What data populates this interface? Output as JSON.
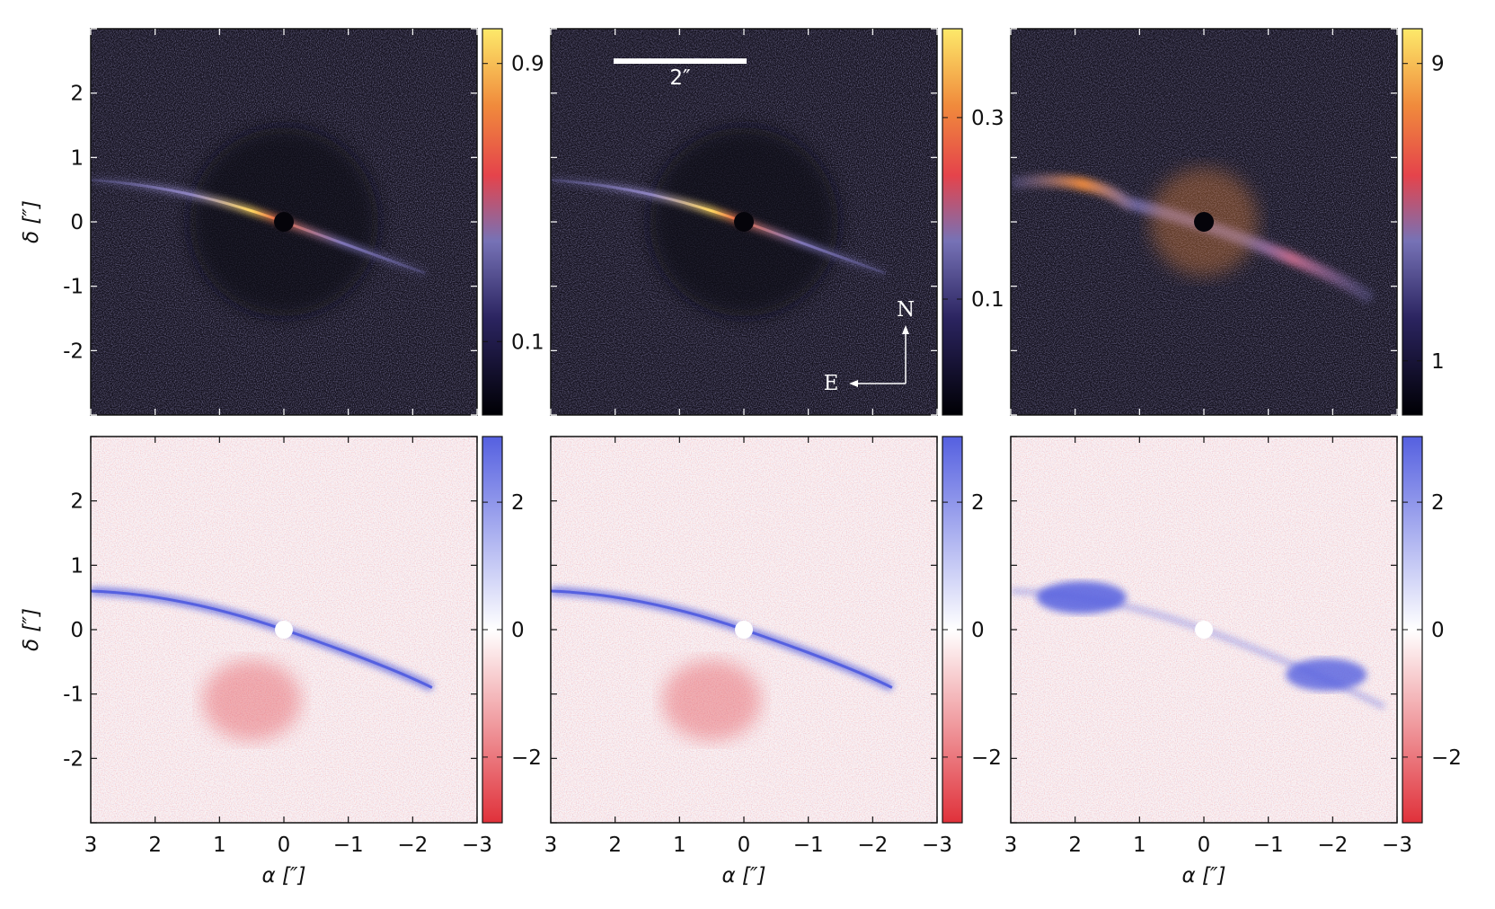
{
  "figure": {
    "x_axis_label": "α [″]",
    "y_axis_label": "δ [″]",
    "x_ticks": [
      "3",
      "2",
      "1",
      "0",
      "−1",
      "−2",
      "−3"
    ],
    "y_ticks": [
      "2",
      "1",
      "0",
      "-1",
      "-2"
    ],
    "scale_bar_label": "2″",
    "compass": {
      "north": "N",
      "east": "E"
    }
  },
  "chart_data": [
    {
      "type": "heatmap",
      "row": "top",
      "column": 1,
      "colormap": "dark-to-yellow",
      "colorbar_ticks": [
        "0.9",
        "0.1"
      ],
      "xlim": [
        3,
        -3
      ],
      "ylim": [
        -3,
        3
      ]
    },
    {
      "type": "heatmap",
      "row": "top",
      "column": 2,
      "colormap": "dark-to-yellow",
      "colorbar_ticks": [
        "0.3",
        "0.1"
      ],
      "xlim": [
        3,
        -3
      ],
      "ylim": [
        -3,
        3
      ]
    },
    {
      "type": "heatmap",
      "row": "top",
      "column": 3,
      "colormap": "dark-to-yellow",
      "colorbar_ticks": [
        "9",
        "1"
      ],
      "xlim": [
        3,
        -3
      ],
      "ylim": [
        -3,
        3
      ]
    },
    {
      "type": "heatmap",
      "row": "bottom",
      "column": 1,
      "colormap": "red-white-blue",
      "colorbar_ticks": [
        "2",
        "0",
        "−2"
      ],
      "xlim": [
        3,
        -3
      ],
      "ylim": [
        -3,
        3
      ]
    },
    {
      "type": "heatmap",
      "row": "bottom",
      "column": 2,
      "colormap": "red-white-blue",
      "colorbar_ticks": [
        "2",
        "0",
        "−2"
      ],
      "xlim": [
        3,
        -3
      ],
      "ylim": [
        -3,
        3
      ]
    },
    {
      "type": "heatmap",
      "row": "bottom",
      "column": 3,
      "colormap": "red-white-blue",
      "colorbar_ticks": [
        "2",
        "0",
        "−2"
      ],
      "xlim": [
        3,
        -3
      ],
      "ylim": [
        -3,
        3
      ]
    }
  ]
}
